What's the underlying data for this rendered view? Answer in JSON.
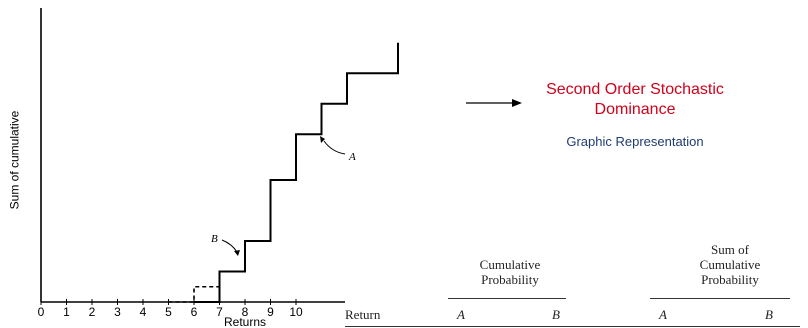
{
  "chart_data": {
    "type": "line",
    "title": "",
    "xlabel": "Returns",
    "ylabel": "Sum of cumulative",
    "xlim": [
      0,
      10
    ],
    "x_ticks": [
      "0",
      "1",
      "2",
      "3",
      "4",
      "5",
      "6",
      "7",
      "8",
      "9",
      "10"
    ],
    "grid": false,
    "series": [
      {
        "name": "A",
        "style": "solid",
        "steps": [
          [
            6,
            0
          ],
          [
            7,
            1
          ],
          [
            8,
            2
          ],
          [
            9,
            4
          ],
          [
            10,
            5.5
          ],
          [
            11,
            6.5
          ],
          [
            12,
            7.5
          ],
          [
            14,
            8.5
          ]
        ]
      },
      {
        "name": "B",
        "style": "dashed",
        "steps": [
          [
            5,
            0
          ],
          [
            6,
            0.5
          ],
          [
            7,
            1
          ],
          [
            8,
            1.5
          ]
        ]
      }
    ],
    "annotations": [
      "A",
      "B"
    ]
  },
  "heading": {
    "title": "Second Order Stochastic Dominance",
    "subtitle": "Graphic Representation"
  },
  "table": {
    "return_label": "Return",
    "group1_lines": [
      "Cumulative",
      "Probability"
    ],
    "group2_lines": [
      "Sum of",
      "Cumulative",
      "Probability"
    ],
    "col_a": "A",
    "col_b": "B"
  },
  "colors": {
    "title": "#d0021b",
    "subtitle": "#1f3b73",
    "lines": "#000000"
  }
}
